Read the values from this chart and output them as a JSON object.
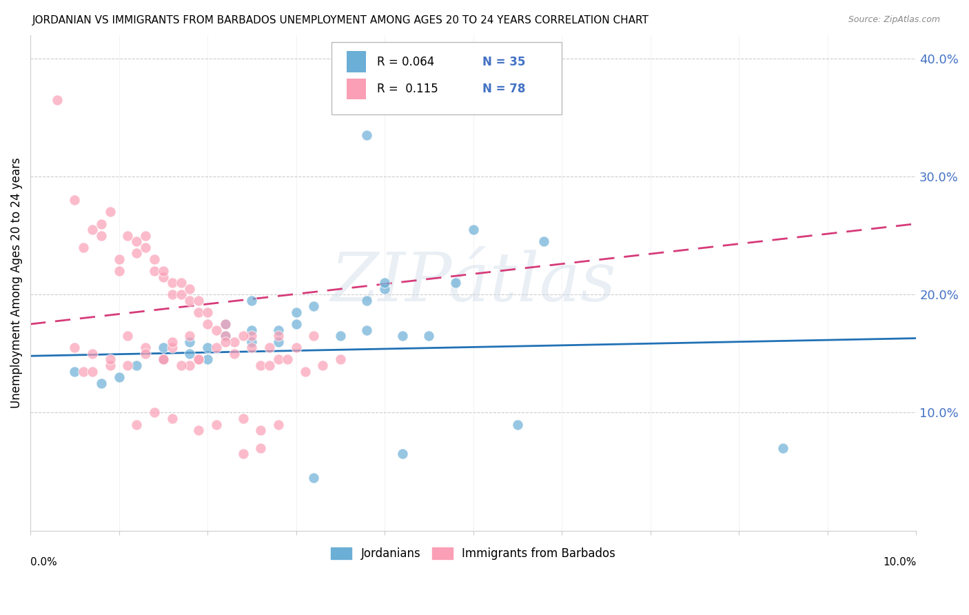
{
  "title": "JORDANIAN VS IMMIGRANTS FROM BARBADOS UNEMPLOYMENT AMONG AGES 20 TO 24 YEARS CORRELATION CHART",
  "source": "Source: ZipAtlas.com",
  "ylabel": "Unemployment Among Ages 20 to 24 years",
  "legend_labels": [
    "Jordanians",
    "Immigrants from Barbados"
  ],
  "legend_r": [
    "R = 0.064",
    "R =  0.115"
  ],
  "legend_n": [
    "N = 35",
    "N = 78"
  ],
  "blue_color": "#6baed6",
  "pink_color": "#fa9fb5",
  "blue_line_color": "#2171b5",
  "pink_line_color": "#d63b7a",
  "watermark": "ZIPátlas",
  "xlim": [
    0.0,
    10.0
  ],
  "ylim": [
    0.0,
    42.0
  ],
  "yticks": [
    10.0,
    20.0,
    30.0,
    40.0
  ],
  "ytick_labels": [
    "10.0%",
    "20.0%",
    "30.0%",
    "40.0%"
  ],
  "xtick_labels": [
    "0.0%",
    "10.0%"
  ],
  "blue_scatter_x": [
    0.5,
    0.8,
    1.0,
    1.2,
    1.5,
    1.5,
    1.8,
    1.8,
    2.0,
    2.0,
    2.2,
    2.2,
    2.5,
    2.5,
    2.8,
    2.8,
    3.0,
    3.0,
    3.2,
    3.5,
    3.8,
    4.0,
    4.0,
    4.2,
    4.5,
    4.8,
    5.0,
    5.5,
    5.8,
    3.8,
    2.5,
    3.2,
    4.2,
    8.5,
    3.8
  ],
  "blue_scatter_y": [
    13.5,
    12.5,
    13.0,
    14.0,
    14.5,
    15.5,
    15.0,
    16.0,
    14.5,
    15.5,
    16.5,
    17.5,
    16.0,
    17.0,
    16.0,
    17.0,
    17.5,
    18.5,
    19.0,
    16.5,
    17.0,
    20.5,
    21.0,
    16.5,
    16.5,
    21.0,
    25.5,
    9.0,
    24.5,
    33.5,
    19.5,
    4.5,
    6.5,
    7.0,
    19.5
  ],
  "pink_scatter_x": [
    0.3,
    0.5,
    0.6,
    0.7,
    0.8,
    0.8,
    0.9,
    1.0,
    1.0,
    1.1,
    1.2,
    1.2,
    1.3,
    1.3,
    1.4,
    1.4,
    1.5,
    1.5,
    1.6,
    1.6,
    1.7,
    1.7,
    1.8,
    1.8,
    1.9,
    1.9,
    2.0,
    2.0,
    2.1,
    2.2,
    2.2,
    2.3,
    2.5,
    2.5,
    2.7,
    2.8,
    3.0,
    3.2,
    3.5,
    0.5,
    0.6,
    0.7,
    0.9,
    1.1,
    1.3,
    1.5,
    1.6,
    1.8,
    1.9,
    2.1,
    2.3,
    2.6,
    2.8,
    3.1,
    3.3,
    1.6,
    1.8,
    2.2,
    2.4,
    2.7,
    2.9,
    1.2,
    1.4,
    1.6,
    1.9,
    2.1,
    2.4,
    2.6,
    2.8,
    0.7,
    0.9,
    1.1,
    1.3,
    1.5,
    1.7,
    1.9,
    2.4,
    2.6
  ],
  "pink_scatter_y": [
    36.5,
    28.0,
    24.0,
    25.5,
    25.0,
    26.0,
    27.0,
    22.0,
    23.0,
    25.0,
    23.5,
    24.5,
    24.0,
    25.0,
    22.0,
    23.0,
    21.5,
    22.0,
    20.0,
    21.0,
    20.0,
    21.0,
    19.5,
    20.5,
    18.5,
    19.5,
    17.5,
    18.5,
    17.0,
    16.5,
    17.5,
    16.0,
    15.5,
    16.5,
    15.5,
    16.5,
    15.5,
    16.5,
    14.5,
    15.5,
    13.5,
    15.0,
    14.0,
    16.5,
    15.5,
    14.5,
    15.5,
    14.0,
    14.5,
    15.5,
    15.0,
    14.0,
    14.5,
    13.5,
    14.0,
    16.0,
    16.5,
    16.0,
    16.5,
    14.0,
    14.5,
    9.0,
    10.0,
    9.5,
    8.5,
    9.0,
    9.5,
    8.5,
    9.0,
    13.5,
    14.5,
    14.0,
    15.0,
    14.5,
    14.0,
    14.5,
    6.5,
    7.0
  ],
  "blue_line_x": [
    0.0,
    10.0
  ],
  "blue_line_y": [
    14.8,
    16.3
  ],
  "pink_line_x": [
    0.0,
    10.0
  ],
  "pink_line_y": [
    17.5,
    26.0
  ]
}
